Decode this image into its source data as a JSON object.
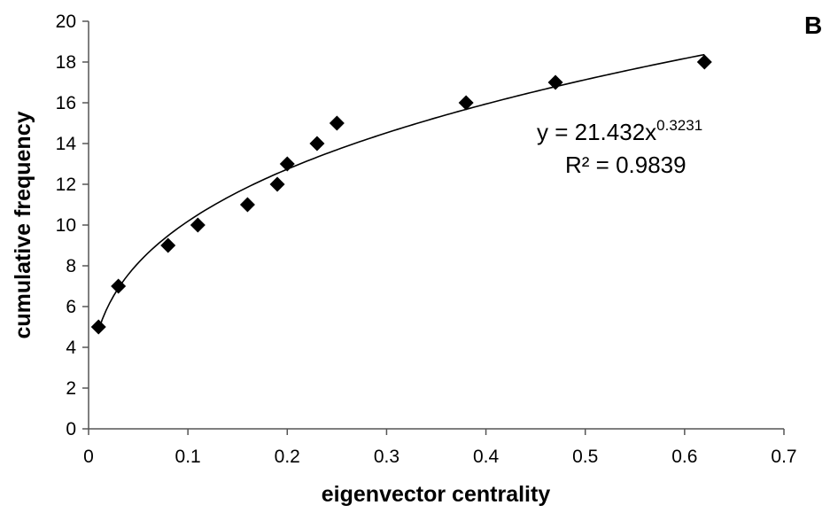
{
  "chart_data": {
    "type": "scatter",
    "panel_label": "B",
    "xlabel": "eigenvector centrality",
    "ylabel": "cumulative frequency",
    "xlim": [
      0,
      0.7
    ],
    "ylim": [
      0,
      20
    ],
    "x_ticks": [
      "0",
      "0.1",
      "0.2",
      "0.3",
      "0.4",
      "0.5",
      "0.6",
      "0.7"
    ],
    "y_ticks": [
      "0",
      "2",
      "4",
      "6",
      "8",
      "10",
      "12",
      "14",
      "16",
      "18",
      "20"
    ],
    "grid": false,
    "series": [
      {
        "marker": "diamond",
        "color": "#000000",
        "points": [
          {
            "x": 0.01,
            "y": 5
          },
          {
            "x": 0.03,
            "y": 7
          },
          {
            "x": 0.08,
            "y": 9
          },
          {
            "x": 0.11,
            "y": 10
          },
          {
            "x": 0.16,
            "y": 11
          },
          {
            "x": 0.19,
            "y": 12
          },
          {
            "x": 0.2,
            "y": 13
          },
          {
            "x": 0.23,
            "y": 14
          },
          {
            "x": 0.25,
            "y": 15
          },
          {
            "x": 0.38,
            "y": 16
          },
          {
            "x": 0.47,
            "y": 17
          },
          {
            "x": 0.62,
            "y": 18
          }
        ]
      }
    ],
    "trendline": {
      "type": "power",
      "coefficient": 21.432,
      "exponent": 0.3231,
      "x_range": [
        0.01,
        0.62
      ],
      "equation_prefix": "y = 21.432x",
      "equation_exponent": "0.3231",
      "r_squared": "R² = 0.9839"
    }
  }
}
